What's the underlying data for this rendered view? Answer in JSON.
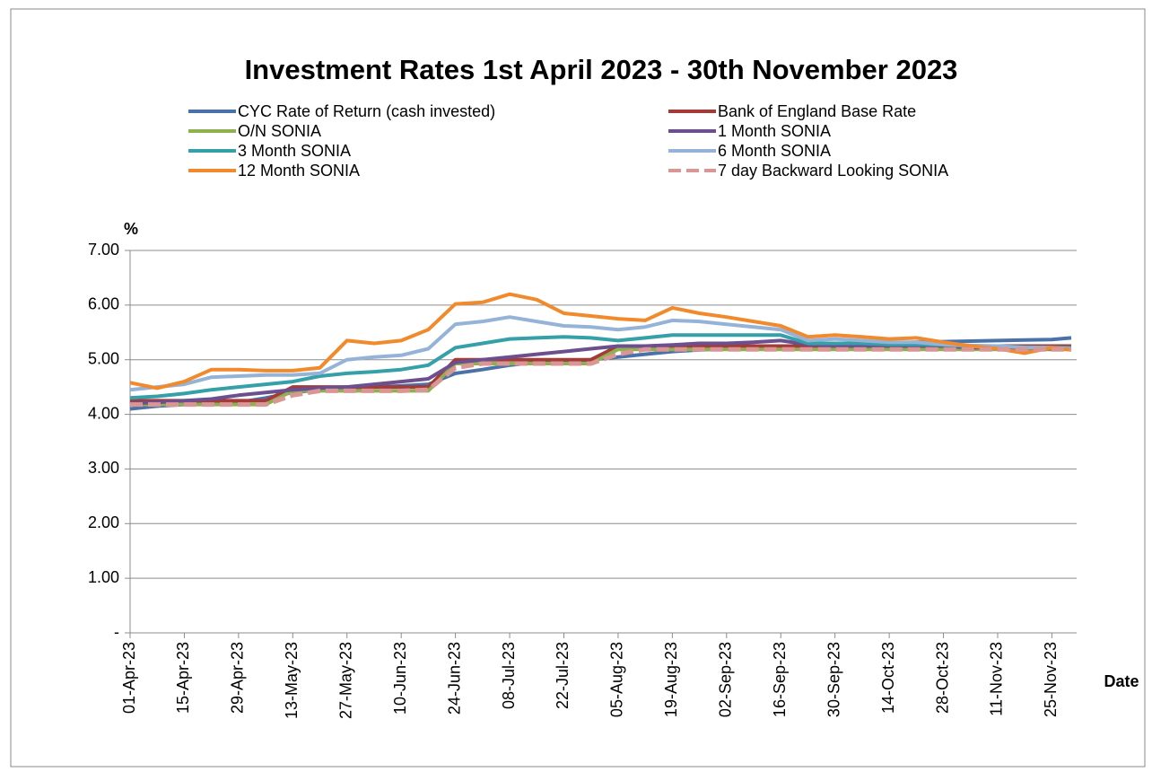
{
  "chart_data": {
    "type": "line",
    "title": "Investment Rates 1st April 2023 - 30th November 2023",
    "y_label": "%",
    "x_label": "Date",
    "x": [
      "01-Apr-23",
      "08-Apr-23",
      "15-Apr-23",
      "22-Apr-23",
      "29-Apr-23",
      "06-May-23",
      "13-May-23",
      "20-May-23",
      "27-May-23",
      "03-Jun-23",
      "10-Jun-23",
      "17-Jun-23",
      "24-Jun-23",
      "01-Jul-23",
      "08-Jul-23",
      "15-Jul-23",
      "22-Jul-23",
      "29-Jul-23",
      "05-Aug-23",
      "12-Aug-23",
      "19-Aug-23",
      "26-Aug-23",
      "02-Sep-23",
      "09-Sep-23",
      "16-Sep-23",
      "23-Sep-23",
      "30-Sep-23",
      "07-Oct-23",
      "14-Oct-23",
      "21-Oct-23",
      "28-Oct-23",
      "04-Nov-23",
      "11-Nov-23",
      "18-Nov-23",
      "25-Nov-23",
      "30-Nov-23"
    ],
    "xlim": [
      "01-Apr-23",
      "30-Nov-23"
    ],
    "xticks": [
      "01-Apr-23",
      "15-Apr-23",
      "29-Apr-23",
      "13-May-23",
      "27-May-23",
      "10-Jun-23",
      "24-Jun-23",
      "08-Jul-23",
      "22-Jul-23",
      "05-Aug-23",
      "19-Aug-23",
      "02-Sep-23",
      "16-Sep-23",
      "30-Sep-23",
      "14-Oct-23",
      "28-Oct-23",
      "11-Nov-23",
      "25-Nov-23"
    ],
    "ylim": [
      0,
      7
    ],
    "yticks": [
      {
        "value": 0,
        "label": "-"
      },
      {
        "value": 1,
        "label": "1.00"
      },
      {
        "value": 2,
        "label": "2.00"
      },
      {
        "value": 3,
        "label": "3.00"
      },
      {
        "value": 4,
        "label": "4.00"
      },
      {
        "value": 5,
        "label": "5.00"
      },
      {
        "value": 6,
        "label": "6.00"
      },
      {
        "value": 7,
        "label": "7.00"
      }
    ],
    "grid": true,
    "series": [
      {
        "name": "CYC Rate of Return (cash invested)",
        "color": "#4a72a8",
        "values": [
          4.1,
          4.15,
          4.18,
          4.2,
          4.22,
          4.3,
          4.4,
          4.45,
          4.48,
          4.5,
          4.52,
          4.55,
          4.75,
          4.82,
          4.9,
          4.95,
          4.98,
          5.0,
          5.05,
          5.1,
          5.15,
          5.18,
          5.2,
          5.22,
          5.24,
          5.25,
          5.27,
          5.28,
          5.3,
          5.32,
          5.33,
          5.34,
          5.35,
          5.36,
          5.37,
          5.4
        ]
      },
      {
        "name": "Bank of England Base Rate",
        "color": "#a33b38",
        "values": [
          4.25,
          4.25,
          4.25,
          4.25,
          4.25,
          4.25,
          4.5,
          4.5,
          4.5,
          4.5,
          4.5,
          4.5,
          5.0,
          5.0,
          5.0,
          5.0,
          5.0,
          5.0,
          5.25,
          5.25,
          5.25,
          5.25,
          5.25,
          5.25,
          5.25,
          5.25,
          5.25,
          5.25,
          5.25,
          5.25,
          5.25,
          5.25,
          5.25,
          5.25,
          5.25,
          5.25
        ]
      },
      {
        "name": "O/N SONIA",
        "color": "#8fb04e",
        "values": [
          4.18,
          4.18,
          4.18,
          4.18,
          4.18,
          4.18,
          4.43,
          4.43,
          4.43,
          4.43,
          4.43,
          4.43,
          4.93,
          4.93,
          4.93,
          4.93,
          4.93,
          4.93,
          5.19,
          5.19,
          5.19,
          5.19,
          5.19,
          5.19,
          5.19,
          5.19,
          5.19,
          5.19,
          5.19,
          5.19,
          5.19,
          5.19,
          5.19,
          5.19,
          5.19,
          5.19
        ]
      },
      {
        "name": "1 Month  SONIA",
        "color": "#6b4f8f",
        "values": [
          4.2,
          4.22,
          4.25,
          4.28,
          4.35,
          4.4,
          4.45,
          4.48,
          4.5,
          4.55,
          4.6,
          4.65,
          4.95,
          5.0,
          5.05,
          5.1,
          5.15,
          5.2,
          5.25,
          5.25,
          5.27,
          5.3,
          5.3,
          5.32,
          5.35,
          5.28,
          5.25,
          5.25,
          5.25,
          5.25,
          5.25,
          5.22,
          5.22,
          5.22,
          5.2,
          5.2
        ]
      },
      {
        "name": "3 Month  SONIA",
        "color": "#35a0a8",
        "values": [
          4.3,
          4.33,
          4.38,
          4.45,
          4.5,
          4.55,
          4.6,
          4.7,
          4.75,
          4.78,
          4.82,
          4.9,
          5.22,
          5.3,
          5.38,
          5.4,
          5.42,
          5.4,
          5.35,
          5.4,
          5.45,
          5.45,
          5.45,
          5.45,
          5.45,
          5.3,
          5.3,
          5.3,
          5.28,
          5.28,
          5.27,
          5.25,
          5.25,
          5.23,
          5.22,
          5.22
        ]
      },
      {
        "name": "6 Month  SONIA",
        "color": "#95b3d7",
        "values": [
          4.45,
          4.5,
          4.55,
          4.68,
          4.7,
          4.72,
          4.72,
          4.75,
          5.0,
          5.05,
          5.08,
          5.2,
          5.65,
          5.7,
          5.78,
          5.7,
          5.62,
          5.6,
          5.55,
          5.6,
          5.72,
          5.7,
          5.65,
          5.6,
          5.55,
          5.35,
          5.38,
          5.35,
          5.32,
          5.32,
          5.28,
          5.26,
          5.25,
          5.22,
          5.22,
          5.2
        ]
      },
      {
        "name": "12 Month  SONIA",
        "color": "#f08a2c",
        "values": [
          4.58,
          4.48,
          4.6,
          4.82,
          4.82,
          4.8,
          4.8,
          4.85,
          5.35,
          5.3,
          5.35,
          5.55,
          6.02,
          6.05,
          6.2,
          6.1,
          5.85,
          5.8,
          5.75,
          5.72,
          5.95,
          5.85,
          5.78,
          5.7,
          5.62,
          5.42,
          5.45,
          5.42,
          5.38,
          5.4,
          5.32,
          5.25,
          5.2,
          5.12,
          5.22,
          5.18
        ]
      },
      {
        "name": "7 day Backward Looking SONIA",
        "color": "#d99694",
        "dashed": true,
        "values": [
          4.18,
          4.18,
          4.18,
          4.18,
          4.18,
          4.18,
          4.35,
          4.43,
          4.43,
          4.43,
          4.43,
          4.45,
          4.85,
          4.93,
          4.93,
          4.93,
          4.93,
          4.93,
          5.1,
          5.19,
          5.19,
          5.19,
          5.19,
          5.19,
          5.19,
          5.19,
          5.19,
          5.19,
          5.19,
          5.19,
          5.19,
          5.19,
          5.19,
          5.19,
          5.19,
          5.19
        ]
      }
    ]
  }
}
